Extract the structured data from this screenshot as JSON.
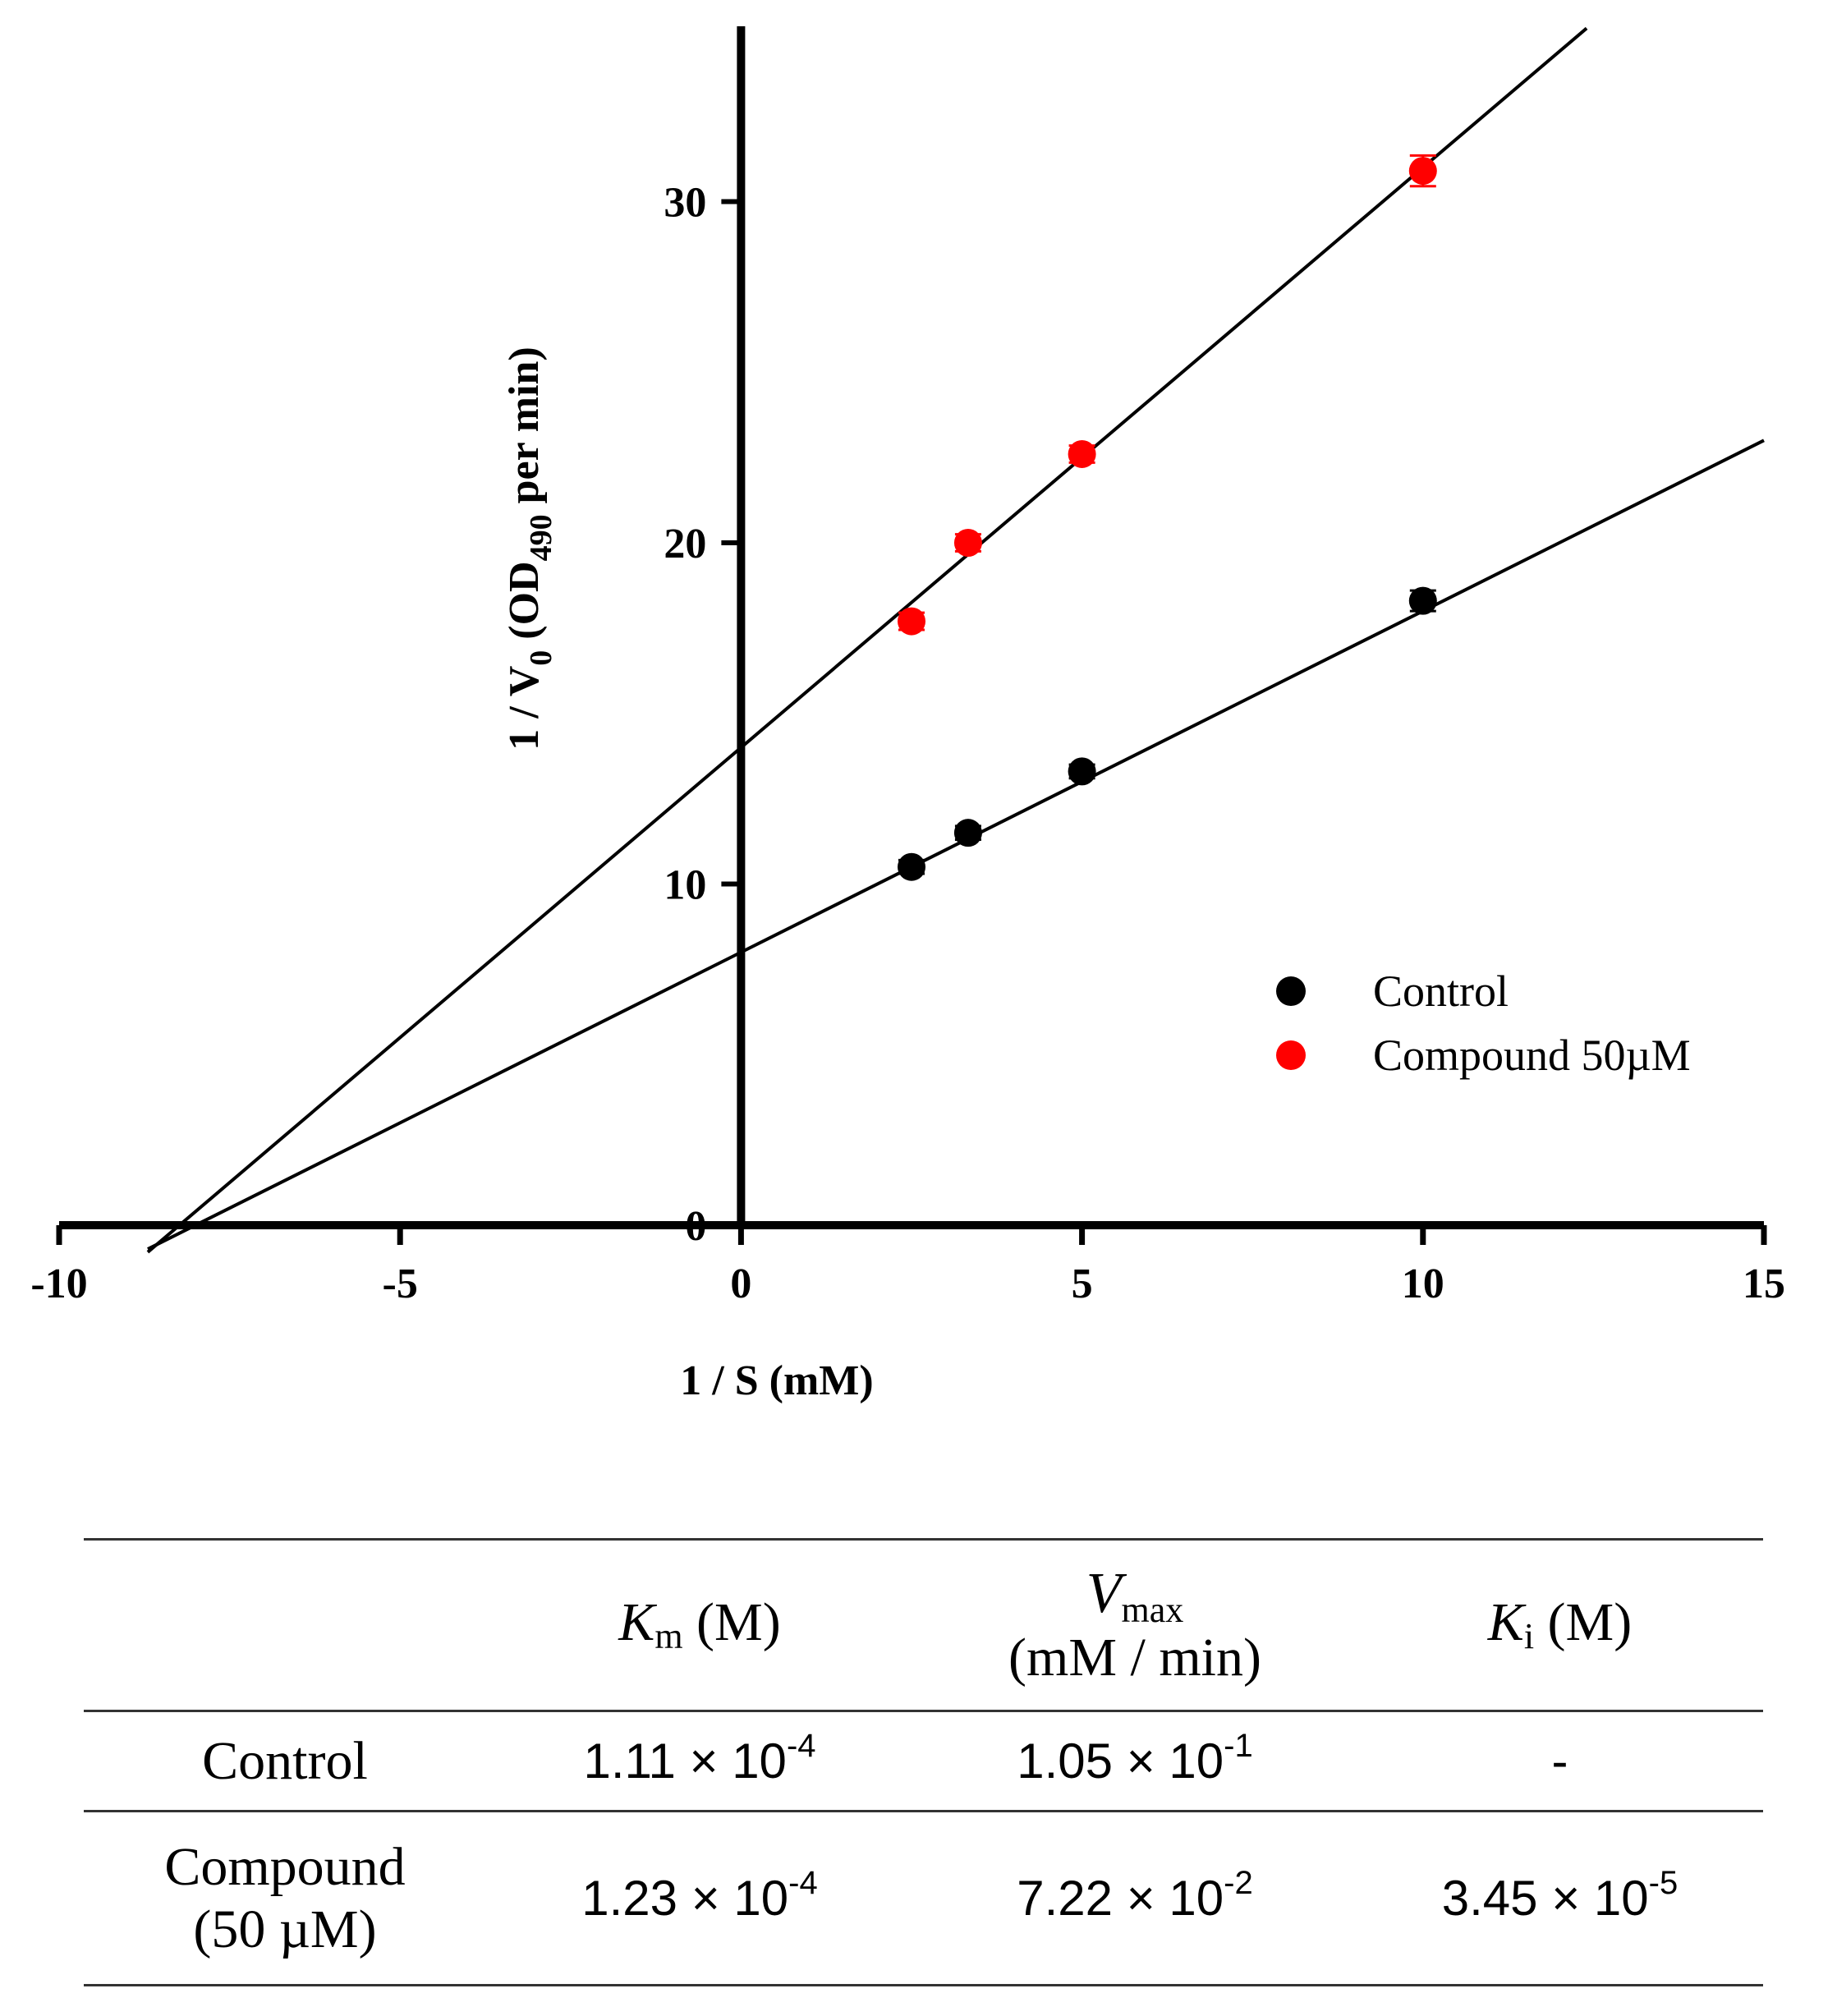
{
  "chart_data": {
    "type": "scatter",
    "title": "",
    "xlabel": "1 / S (mM)",
    "ylabel_parts": {
      "prefix": "1 / V",
      "prefix_sub": "0",
      "middle": " (OD",
      "middle_sub": "490",
      "suffix": " per min)"
    },
    "xlim": [
      -10,
      15
    ],
    "ylim": [
      0,
      35
    ],
    "x_ticks": [
      -10,
      -5,
      0,
      5,
      10,
      15
    ],
    "x_tick_labels": [
      "-10",
      "-5",
      "0",
      "5",
      "10",
      "15"
    ],
    "y_ticks": [
      0,
      10,
      20,
      30
    ],
    "y_tick_labels": [
      "0",
      "10",
      "20",
      "30"
    ],
    "legend_position": "right, middle",
    "colors": {
      "control": "#000000",
      "compound": "#ff0000",
      "axis": "#000000"
    },
    "series": [
      {
        "name": "Control",
        "color": "#000000",
        "x": [
          2.5,
          3.33,
          5,
          10
        ],
        "y": [
          10.5,
          11.5,
          13.3,
          18.3
        ],
        "y_err": [
          0.2,
          0.2,
          0.2,
          0.3
        ],
        "fit": {
          "slope": 1.0,
          "intercept": 8.0,
          "x_start": -8.7,
          "x_end": 15
        }
      },
      {
        "name": "Compound 50µM",
        "color": "#ff0000",
        "x": [
          2.5,
          3.33,
          5,
          10
        ],
        "y": [
          17.7,
          20.0,
          22.6,
          30.9
        ],
        "y_err": [
          0.25,
          0.25,
          0.25,
          0.45
        ],
        "fit": {
          "slope": 1.7,
          "intercept": 14.0,
          "x_start": -8.7,
          "x_end": 12.4
        }
      }
    ]
  },
  "table": {
    "header": {
      "km_symbol": "K",
      "km_sub": "m",
      "km_unit": " (M)",
      "vmax_symbol": "V",
      "vmax_sub": "max",
      "vmax_unit": "(mM / min)",
      "ki_symbol": "K",
      "ki_sub": "i",
      "ki_unit": " (M)"
    },
    "rows": [
      {
        "label_line1": "Control",
        "label_line2": "",
        "km": "1.11 × 10",
        "km_exp": "-4",
        "vmax": "1.05 × 10",
        "vmax_exp": "-1",
        "ki": "-",
        "ki_exp": ""
      },
      {
        "label_line1": "Compound",
        "label_line2": "(50 µM)",
        "km": "1.23 × 10",
        "km_exp": "-4",
        "vmax": "7.22 × 10",
        "vmax_exp": "-2",
        "ki": "3.45 × 10",
        "ki_exp": "-5"
      }
    ]
  }
}
